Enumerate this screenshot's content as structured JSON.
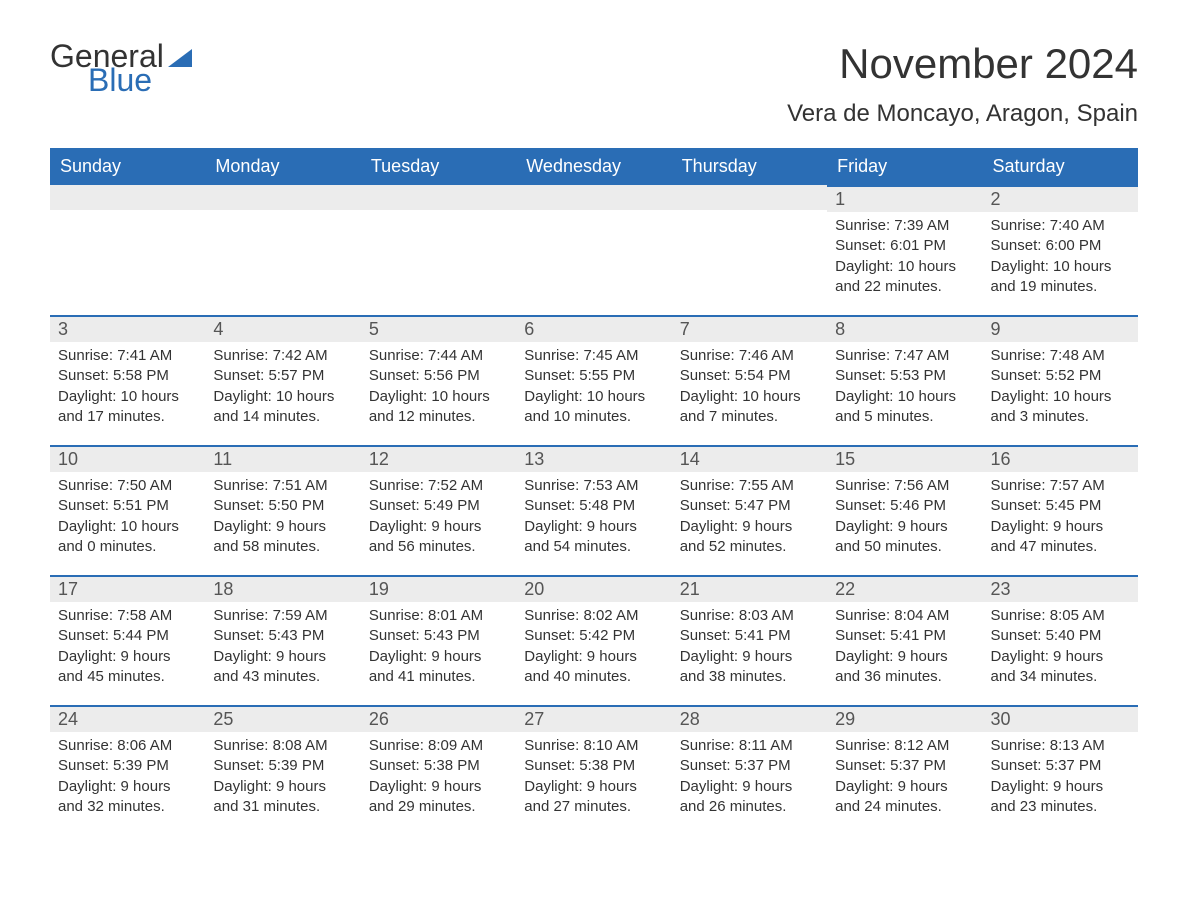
{
  "logo": {
    "general": "General",
    "blue": "Blue"
  },
  "title": "November 2024",
  "location": "Vera de Moncayo, Aragon, Spain",
  "colors": {
    "header_bg": "#2a6db5",
    "header_text": "#ffffff",
    "daynum_bg": "#ececec",
    "border": "#2a6db5",
    "text": "#333333",
    "logo_blue": "#2a6db5"
  },
  "weekdays": [
    "Sunday",
    "Monday",
    "Tuesday",
    "Wednesday",
    "Thursday",
    "Friday",
    "Saturday"
  ],
  "weeks": [
    [
      {
        "blank": true
      },
      {
        "blank": true
      },
      {
        "blank": true
      },
      {
        "blank": true
      },
      {
        "blank": true
      },
      {
        "day": "1",
        "sunrise": "Sunrise: 7:39 AM",
        "sunset": "Sunset: 6:01 PM",
        "daylight1": "Daylight: 10 hours",
        "daylight2": "and 22 minutes."
      },
      {
        "day": "2",
        "sunrise": "Sunrise: 7:40 AM",
        "sunset": "Sunset: 6:00 PM",
        "daylight1": "Daylight: 10 hours",
        "daylight2": "and 19 minutes."
      }
    ],
    [
      {
        "day": "3",
        "sunrise": "Sunrise: 7:41 AM",
        "sunset": "Sunset: 5:58 PM",
        "daylight1": "Daylight: 10 hours",
        "daylight2": "and 17 minutes."
      },
      {
        "day": "4",
        "sunrise": "Sunrise: 7:42 AM",
        "sunset": "Sunset: 5:57 PM",
        "daylight1": "Daylight: 10 hours",
        "daylight2": "and 14 minutes."
      },
      {
        "day": "5",
        "sunrise": "Sunrise: 7:44 AM",
        "sunset": "Sunset: 5:56 PM",
        "daylight1": "Daylight: 10 hours",
        "daylight2": "and 12 minutes."
      },
      {
        "day": "6",
        "sunrise": "Sunrise: 7:45 AM",
        "sunset": "Sunset: 5:55 PM",
        "daylight1": "Daylight: 10 hours",
        "daylight2": "and 10 minutes."
      },
      {
        "day": "7",
        "sunrise": "Sunrise: 7:46 AM",
        "sunset": "Sunset: 5:54 PM",
        "daylight1": "Daylight: 10 hours",
        "daylight2": "and 7 minutes."
      },
      {
        "day": "8",
        "sunrise": "Sunrise: 7:47 AM",
        "sunset": "Sunset: 5:53 PM",
        "daylight1": "Daylight: 10 hours",
        "daylight2": "and 5 minutes."
      },
      {
        "day": "9",
        "sunrise": "Sunrise: 7:48 AM",
        "sunset": "Sunset: 5:52 PM",
        "daylight1": "Daylight: 10 hours",
        "daylight2": "and 3 minutes."
      }
    ],
    [
      {
        "day": "10",
        "sunrise": "Sunrise: 7:50 AM",
        "sunset": "Sunset: 5:51 PM",
        "daylight1": "Daylight: 10 hours",
        "daylight2": "and 0 minutes."
      },
      {
        "day": "11",
        "sunrise": "Sunrise: 7:51 AM",
        "sunset": "Sunset: 5:50 PM",
        "daylight1": "Daylight: 9 hours",
        "daylight2": "and 58 minutes."
      },
      {
        "day": "12",
        "sunrise": "Sunrise: 7:52 AM",
        "sunset": "Sunset: 5:49 PM",
        "daylight1": "Daylight: 9 hours",
        "daylight2": "and 56 minutes."
      },
      {
        "day": "13",
        "sunrise": "Sunrise: 7:53 AM",
        "sunset": "Sunset: 5:48 PM",
        "daylight1": "Daylight: 9 hours",
        "daylight2": "and 54 minutes."
      },
      {
        "day": "14",
        "sunrise": "Sunrise: 7:55 AM",
        "sunset": "Sunset: 5:47 PM",
        "daylight1": "Daylight: 9 hours",
        "daylight2": "and 52 minutes."
      },
      {
        "day": "15",
        "sunrise": "Sunrise: 7:56 AM",
        "sunset": "Sunset: 5:46 PM",
        "daylight1": "Daylight: 9 hours",
        "daylight2": "and 50 minutes."
      },
      {
        "day": "16",
        "sunrise": "Sunrise: 7:57 AM",
        "sunset": "Sunset: 5:45 PM",
        "daylight1": "Daylight: 9 hours",
        "daylight2": "and 47 minutes."
      }
    ],
    [
      {
        "day": "17",
        "sunrise": "Sunrise: 7:58 AM",
        "sunset": "Sunset: 5:44 PM",
        "daylight1": "Daylight: 9 hours",
        "daylight2": "and 45 minutes."
      },
      {
        "day": "18",
        "sunrise": "Sunrise: 7:59 AM",
        "sunset": "Sunset: 5:43 PM",
        "daylight1": "Daylight: 9 hours",
        "daylight2": "and 43 minutes."
      },
      {
        "day": "19",
        "sunrise": "Sunrise: 8:01 AM",
        "sunset": "Sunset: 5:43 PM",
        "daylight1": "Daylight: 9 hours",
        "daylight2": "and 41 minutes."
      },
      {
        "day": "20",
        "sunrise": "Sunrise: 8:02 AM",
        "sunset": "Sunset: 5:42 PM",
        "daylight1": "Daylight: 9 hours",
        "daylight2": "and 40 minutes."
      },
      {
        "day": "21",
        "sunrise": "Sunrise: 8:03 AM",
        "sunset": "Sunset: 5:41 PM",
        "daylight1": "Daylight: 9 hours",
        "daylight2": "and 38 minutes."
      },
      {
        "day": "22",
        "sunrise": "Sunrise: 8:04 AM",
        "sunset": "Sunset: 5:41 PM",
        "daylight1": "Daylight: 9 hours",
        "daylight2": "and 36 minutes."
      },
      {
        "day": "23",
        "sunrise": "Sunrise: 8:05 AM",
        "sunset": "Sunset: 5:40 PM",
        "daylight1": "Daylight: 9 hours",
        "daylight2": "and 34 minutes."
      }
    ],
    [
      {
        "day": "24",
        "sunrise": "Sunrise: 8:06 AM",
        "sunset": "Sunset: 5:39 PM",
        "daylight1": "Daylight: 9 hours",
        "daylight2": "and 32 minutes."
      },
      {
        "day": "25",
        "sunrise": "Sunrise: 8:08 AM",
        "sunset": "Sunset: 5:39 PM",
        "daylight1": "Daylight: 9 hours",
        "daylight2": "and 31 minutes."
      },
      {
        "day": "26",
        "sunrise": "Sunrise: 8:09 AM",
        "sunset": "Sunset: 5:38 PM",
        "daylight1": "Daylight: 9 hours",
        "daylight2": "and 29 minutes."
      },
      {
        "day": "27",
        "sunrise": "Sunrise: 8:10 AM",
        "sunset": "Sunset: 5:38 PM",
        "daylight1": "Daylight: 9 hours",
        "daylight2": "and 27 minutes."
      },
      {
        "day": "28",
        "sunrise": "Sunrise: 8:11 AM",
        "sunset": "Sunset: 5:37 PM",
        "daylight1": "Daylight: 9 hours",
        "daylight2": "and 26 minutes."
      },
      {
        "day": "29",
        "sunrise": "Sunrise: 8:12 AM",
        "sunset": "Sunset: 5:37 PM",
        "daylight1": "Daylight: 9 hours",
        "daylight2": "and 24 minutes."
      },
      {
        "day": "30",
        "sunrise": "Sunrise: 8:13 AM",
        "sunset": "Sunset: 5:37 PM",
        "daylight1": "Daylight: 9 hours",
        "daylight2": "and 23 minutes."
      }
    ]
  ]
}
